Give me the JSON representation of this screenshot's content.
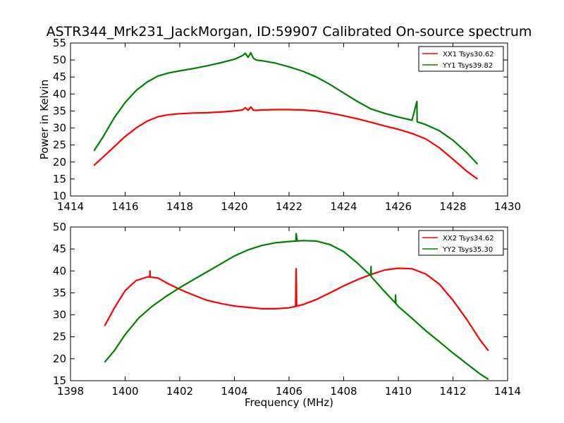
{
  "figure_title": "ASTR344_Mrk231_JackMorgan, ID:59907 Calibrated On-source spectrum",
  "colors": {
    "xx": "#ff0000",
    "yy": "#008000"
  },
  "chart_data": [
    {
      "type": "line",
      "title": "ASTR344_Mrk231_JackMorgan, ID:59907 Calibrated On-source spectrum",
      "xlabel": "",
      "ylabel": "Power in Kelvin",
      "xlim": [
        1414,
        1430
      ],
      "ylim": [
        10,
        55
      ],
      "xticks": [
        1414,
        1416,
        1418,
        1420,
        1422,
        1424,
        1426,
        1428,
        1430
      ],
      "yticks": [
        10,
        15,
        20,
        25,
        30,
        35,
        40,
        45,
        50,
        55
      ],
      "grid": false,
      "legend": "top-right",
      "series": [
        {
          "name": "XX1 Tsys30.62",
          "color": "#ff0000",
          "x": [
            1414.86,
            1415.2,
            1415.6,
            1416.0,
            1416.4,
            1416.8,
            1417.2,
            1417.6,
            1418.0,
            1418.5,
            1419.0,
            1419.5,
            1420.0,
            1420.3,
            1420.4,
            1420.5,
            1420.6,
            1420.7,
            1420.8,
            1421.0,
            1421.5,
            1422.0,
            1422.5,
            1423.0,
            1423.5,
            1424.0,
            1424.5,
            1425.0,
            1425.5,
            1426.0,
            1426.5,
            1427.0,
            1427.5,
            1428.0,
            1428.5,
            1428.9
          ],
          "y": [
            19.0,
            21.5,
            24.5,
            27.5,
            30.0,
            32.0,
            33.3,
            33.9,
            34.2,
            34.4,
            34.5,
            34.7,
            35.0,
            35.3,
            36.0,
            35.2,
            36.2,
            35.2,
            35.2,
            35.3,
            35.4,
            35.4,
            35.3,
            35.0,
            34.4,
            33.6,
            32.7,
            31.7,
            30.6,
            29.6,
            28.4,
            26.8,
            24.2,
            20.8,
            17.3,
            15.0
          ]
        },
        {
          "name": "YY1 Tsys39.82",
          "color": "#008000",
          "x": [
            1414.86,
            1415.2,
            1415.6,
            1416.0,
            1416.4,
            1416.8,
            1417.2,
            1417.6,
            1418.0,
            1418.5,
            1419.0,
            1419.5,
            1420.0,
            1420.3,
            1420.4,
            1420.5,
            1420.6,
            1420.7,
            1420.8,
            1421.0,
            1421.5,
            1422.0,
            1422.5,
            1423.0,
            1423.5,
            1424.0,
            1424.5,
            1425.0,
            1425.5,
            1426.0,
            1426.5,
            1426.68,
            1426.69,
            1426.7,
            1427.0,
            1427.5,
            1428.0,
            1428.5,
            1428.9
          ],
          "y": [
            23.3,
            27.5,
            33.0,
            37.5,
            41.0,
            43.5,
            45.3,
            46.2,
            46.8,
            47.5,
            48.3,
            49.2,
            50.2,
            51.3,
            52.0,
            50.8,
            52.1,
            50.5,
            50.0,
            49.8,
            49.1,
            48.0,
            46.7,
            45.0,
            42.8,
            40.3,
            37.8,
            35.6,
            34.3,
            33.2,
            32.3,
            37.8,
            31.8,
            31.8,
            31.0,
            29.2,
            26.4,
            22.8,
            19.4
          ]
        }
      ]
    },
    {
      "type": "line",
      "title": "",
      "xlabel": "Frequency (MHz)",
      "ylabel": "",
      "xlim": [
        1398,
        1414
      ],
      "ylim": [
        15,
        50
      ],
      "xticks": [
        1398,
        1400,
        1402,
        1404,
        1406,
        1408,
        1410,
        1412,
        1414
      ],
      "yticks": [
        15,
        20,
        25,
        30,
        35,
        40,
        45,
        50
      ],
      "grid": false,
      "legend": "top-right",
      "series": [
        {
          "name": "XX2 Tsys34.62",
          "color": "#ff0000",
          "x": [
            1399.25,
            1399.6,
            1400.0,
            1400.4,
            1400.8,
            1400.9,
            1400.91,
            1400.92,
            1401.2,
            1401.6,
            1402.0,
            1402.5,
            1403.0,
            1403.5,
            1404.0,
            1404.5,
            1405.0,
            1405.5,
            1406.0,
            1406.24,
            1406.26,
            1406.28,
            1406.5,
            1407.0,
            1407.5,
            1408.0,
            1408.5,
            1409.0,
            1409.5,
            1410.0,
            1410.5,
            1411.0,
            1411.5,
            1412.0,
            1412.5,
            1413.0,
            1413.3
          ],
          "y": [
            27.5,
            31.5,
            35.5,
            37.8,
            38.6,
            38.6,
            40.0,
            38.6,
            38.4,
            37.0,
            35.8,
            34.5,
            33.3,
            32.6,
            32.0,
            31.7,
            31.4,
            31.4,
            31.6,
            31.9,
            40.5,
            32.0,
            32.3,
            33.5,
            35.0,
            36.6,
            38.0,
            39.2,
            40.2,
            40.6,
            40.5,
            39.3,
            37.0,
            33.3,
            29.0,
            24.2,
            21.8
          ]
        },
        {
          "name": "YY2 Tsys35.30",
          "color": "#008000",
          "x": [
            1399.25,
            1399.6,
            1400.0,
            1400.5,
            1401.0,
            1401.5,
            1402.0,
            1402.5,
            1403.0,
            1403.5,
            1404.0,
            1404.5,
            1405.0,
            1405.5,
            1406.0,
            1406.25,
            1406.26,
            1406.3,
            1406.5,
            1407.0,
            1407.5,
            1408.0,
            1408.5,
            1408.99,
            1409.0,
            1409.01,
            1409.5,
            1409.89,
            1409.9,
            1409.91,
            1410.0,
            1410.5,
            1411.0,
            1411.5,
            1412.0,
            1412.5,
            1413.0,
            1413.3
          ],
          "y": [
            19.2,
            21.8,
            25.5,
            29.3,
            32.0,
            34.2,
            36.2,
            38.0,
            39.8,
            41.6,
            43.4,
            44.8,
            45.8,
            46.4,
            46.7,
            46.8,
            48.5,
            46.8,
            46.9,
            46.8,
            46.0,
            44.4,
            41.8,
            38.9,
            41.0,
            38.7,
            35.3,
            32.7,
            34.5,
            32.6,
            31.9,
            29.2,
            26.4,
            23.9,
            21.3,
            18.9,
            16.5,
            15.3
          ]
        }
      ]
    }
  ]
}
